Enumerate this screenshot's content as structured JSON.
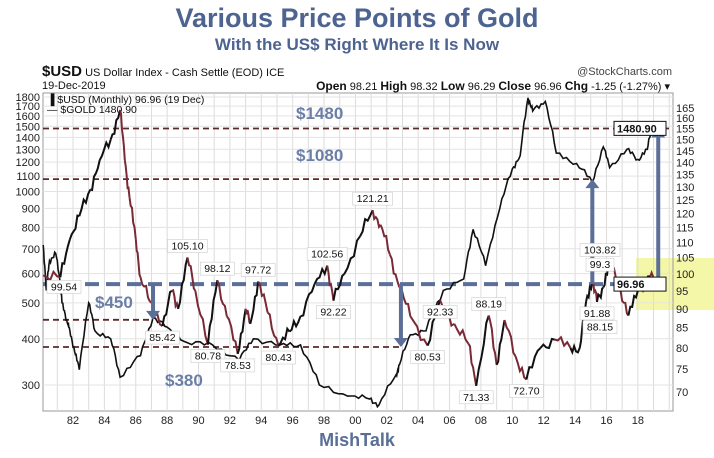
{
  "title": "Various Price Points of Gold",
  "subtitle": "With the US$ Right Where It Is Now",
  "footer": "MishTalk",
  "header": {
    "symbol": "$USD",
    "name": "US Dollar Index - Cash Settle (EOD)",
    "exchange": "ICE",
    "source": "@StockCharts.com",
    "date": "19-Dec-2019",
    "open_label": "Open",
    "open": "98.21",
    "high_label": "High",
    "high": "98.32",
    "low_label": "Low",
    "low": "96.29",
    "close_label": "Close",
    "close": "96.96",
    "chg_label": "Chg",
    "chg": "-1.25 (-1.27%) ▾"
  },
  "legend": [
    "▐ $USD (Monthly) 96.96 (19 Dec)",
    "— $GOLD 1480.90"
  ],
  "colors": {
    "accent": "#4d6390",
    "arrow": "#5b6f99",
    "level": "#5a2a2a",
    "up": "#111111",
    "down": "#7a2a35",
    "highlight": "#f5f7a8"
  },
  "chart_data": {
    "type": "line",
    "title": "Various Price Points of Gold",
    "xlabel": "",
    "x_ticks": [
      "82",
      "84",
      "86",
      "88",
      "90",
      "92",
      "94",
      "96",
      "98",
      "00",
      "02",
      "04",
      "06",
      "08",
      "10",
      "12",
      "14",
      "16",
      "18"
    ],
    "x_tick_years": [
      1982,
      1984,
      1986,
      1988,
      1990,
      1992,
      1994,
      1996,
      1998,
      2000,
      2002,
      2004,
      2006,
      2008,
      2010,
      2012,
      2014,
      2016,
      2018
    ],
    "xlim": [
      1979.5,
      2020.1
    ],
    "left_axis": {
      "label": "$GOLD",
      "scale": "log",
      "ylim": [
        300,
        1800
      ],
      "ticks": [
        300,
        400,
        500,
        600,
        700,
        800,
        900,
        1000,
        1100,
        1200,
        1300,
        1400,
        1500,
        1600,
        1700,
        1800
      ]
    },
    "right_axis": {
      "label": "$USD",
      "scale": "log",
      "ylim": [
        70,
        165
      ],
      "ticks": [
        70,
        75,
        80,
        85,
        90,
        95,
        100,
        105,
        110,
        115,
        120,
        125,
        130,
        135,
        140,
        145,
        150,
        155,
        160,
        165
      ]
    },
    "series": [
      {
        "name": "$GOLD",
        "axis": "left",
        "points": [
          [
            1980.1,
            717
          ],
          [
            1980.3,
            540
          ],
          [
            1980.5,
            650
          ],
          [
            1980.9,
            680
          ],
          [
            1981.2,
            560
          ],
          [
            1981.3,
            500
          ],
          [
            1981.6,
            450
          ],
          [
            1981.8,
            420
          ],
          [
            1982.1,
            370
          ],
          [
            1982.4,
            330
          ],
          [
            1983.0,
            500
          ],
          [
            1983.4,
            420
          ],
          [
            1984.4,
            400
          ],
          [
            1985.0,
            315
          ],
          [
            1986.3,
            360
          ],
          [
            1987.1,
            455
          ],
          [
            1988.0,
            430
          ],
          [
            1989.3,
            390
          ],
          [
            1990.9,
            385
          ],
          [
            1992.6,
            350
          ],
          [
            1993.5,
            400
          ],
          [
            1995.2,
            385
          ],
          [
            1996.5,
            385
          ],
          [
            1997.7,
            300
          ],
          [
            1999.5,
            280
          ],
          [
            2000.9,
            275
          ],
          [
            2001.5,
            265
          ],
          [
            2002.6,
            320
          ],
          [
            2002.8,
            340
          ],
          [
            2003.5,
            410
          ],
          [
            2004.5,
            420
          ],
          [
            2005.6,
            540
          ],
          [
            2006.9,
            580
          ],
          [
            2007.5,
            790
          ],
          [
            2008.3,
            630
          ],
          [
            2009.2,
            900
          ],
          [
            2010.0,
            1150
          ],
          [
            2010.5,
            1250
          ],
          [
            2011.0,
            1790
          ],
          [
            2011.3,
            1650
          ],
          [
            2012.1,
            1750
          ],
          [
            2012.8,
            1270
          ],
          [
            2014.1,
            1190
          ],
          [
            2015.1,
            1060
          ],
          [
            2015.8,
            1320
          ],
          [
            2016.2,
            1160
          ],
          [
            2017.3,
            1300
          ],
          [
            2018.0,
            1220
          ],
          [
            2018.6,
            1300
          ],
          [
            2018.9,
            1500
          ],
          [
            2019.2,
            1480.9
          ]
        ]
      },
      {
        "name": "$USD",
        "axis": "right",
        "points": [
          [
            1980.1,
            99.54
          ],
          [
            1981.2,
            99
          ],
          [
            1981.8,
            111
          ],
          [
            1982.4,
            119
          ],
          [
            1983.1,
            129
          ],
          [
            1983.7,
            141
          ],
          [
            1984.4,
            150
          ],
          [
            1985.0,
            164
          ],
          [
            1985.3,
            141
          ],
          [
            1985.6,
            126
          ],
          [
            1986.0,
            111
          ],
          [
            1986.3,
            99
          ],
          [
            1986.9,
            92
          ],
          [
            1987.7,
            85.42
          ],
          [
            1988.3,
            95
          ],
          [
            1988.7,
            90
          ],
          [
            1989.3,
            105.1
          ],
          [
            1989.8,
            95
          ],
          [
            1990.6,
            80.78
          ],
          [
            1991.2,
            98.12
          ],
          [
            1991.8,
            88
          ],
          [
            1992.5,
            78.53
          ],
          [
            1993.0,
            90
          ],
          [
            1993.3,
            86
          ],
          [
            1993.8,
            97.72
          ],
          [
            1994.4,
            89
          ],
          [
            1995.1,
            80.43
          ],
          [
            1995.8,
            84
          ],
          [
            1996.5,
            88
          ],
          [
            1997.4,
            97
          ],
          [
            1998.2,
            102.56
          ],
          [
            1998.6,
            92.22
          ],
          [
            1999.3,
            100
          ],
          [
            2000.3,
            112
          ],
          [
            2001.1,
            121.21
          ],
          [
            2001.6,
            116
          ],
          [
            2002.2,
            106
          ],
          [
            2002.8,
            96
          ],
          [
            2003.5,
            88
          ],
          [
            2004.6,
            80.53
          ],
          [
            2005.4,
            92.33
          ],
          [
            2006.3,
            86
          ],
          [
            2007.2,
            81
          ],
          [
            2007.7,
            71.33
          ],
          [
            2008.5,
            88.19
          ],
          [
            2009.0,
            76
          ],
          [
            2009.5,
            87
          ],
          [
            2010.2,
            78
          ],
          [
            2010.9,
            72.7
          ],
          [
            2011.8,
            80
          ],
          [
            2012.7,
            82
          ],
          [
            2013.7,
            80
          ],
          [
            2014.3,
            80
          ],
          [
            2014.7,
            92
          ],
          [
            2015.1,
            98
          ],
          [
            2015.4,
            91.88
          ],
          [
            2015.8,
            96
          ],
          [
            2016.2,
            103.82
          ],
          [
            2016.9,
            95
          ],
          [
            2017.4,
            88.15
          ],
          [
            2018.0,
            95
          ],
          [
            2018.8,
            99.3
          ],
          [
            2019.2,
            96.96
          ]
        ]
      }
    ],
    "usd_labels": [
      [
        1980.1,
        99.54,
        "99.54"
      ],
      [
        1987.7,
        85.42,
        "85.42"
      ],
      [
        1989.3,
        105.1,
        "105.10"
      ],
      [
        1990.6,
        80.78,
        "80.78"
      ],
      [
        1991.2,
        98.12,
        "98.12"
      ],
      [
        1992.5,
        78.53,
        "78.53"
      ],
      [
        1993.8,
        97.72,
        "97.72"
      ],
      [
        1995.1,
        80.43,
        "80.43"
      ],
      [
        1998.2,
        102.56,
        "102.56"
      ],
      [
        1998.6,
        92.22,
        "92.22"
      ],
      [
        2001.1,
        121.21,
        "121.21"
      ],
      [
        2004.6,
        80.53,
        "80.53"
      ],
      [
        2005.4,
        92.33,
        "92.33"
      ],
      [
        2007.7,
        71.33,
        "71.33"
      ],
      [
        2008.5,
        88.19,
        "88.19"
      ],
      [
        2010.9,
        72.7,
        "72.70"
      ],
      [
        2015.4,
        91.88,
        "91.88"
      ],
      [
        2016.2,
        103.82,
        "103.82"
      ],
      [
        2017.4,
        88.15,
        "88.15"
      ],
      [
        2018.8,
        99.3,
        "99.3"
      ]
    ],
    "gold_levels": [
      {
        "value": 1480,
        "label": "$1480"
      },
      {
        "value": 1080,
        "label": "$1080"
      },
      {
        "value": 450,
        "label": "$450"
      },
      {
        "value": 380,
        "label": "$380"
      }
    ],
    "usd_level": 96.96,
    "last_values": {
      "gold": "1480.90",
      "usd": "96.96"
    },
    "arrows": [
      {
        "year": 1987.1,
        "to_gold": 450
      },
      {
        "year": 2002.9,
        "to_gold": 380
      },
      {
        "year": 2015.1,
        "to_gold": 1080
      },
      {
        "year": 2019.3,
        "to_gold": 1480
      }
    ]
  }
}
